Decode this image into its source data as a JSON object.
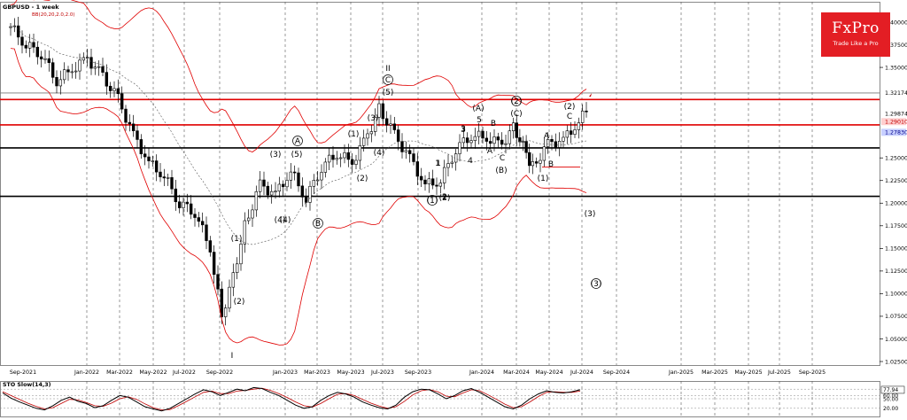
{
  "header": {
    "title": "GBPUSD - 1 week",
    "indicator": "BB(20,20,2.0,2.0)",
    "oscillator": "STO Slow(14,3)"
  },
  "brand": {
    "name": "FxPro",
    "tagline": "Trade Like a Pro"
  },
  "colors": {
    "background": "#ffffff",
    "bands": "#e00000",
    "candles": "#000000",
    "levels_red": "#e00000",
    "levels_black": "#000000",
    "sto_main": "#000000",
    "sto_signal": "#c00000",
    "price_tag": "#c8d0ff"
  },
  "chart_data": [
    {
      "type": "candlestick",
      "title": "GBPUSD - 1 week",
      "ylim": [
        1.0,
        1.42
      ],
      "y_ticks": [
        "1.40000",
        "1.37500",
        "1.35000",
        "1.32174",
        "1.29874",
        "1.29010",
        "1.27830",
        "1.25000",
        "1.22500",
        "1.20000",
        "1.17500",
        "1.15000",
        "1.12500",
        "1.10000",
        "1.07500",
        "1.05000",
        "1.02500"
      ],
      "x_ticks": [
        "Sep-2021",
        "Jan-2022",
        "Mar-2022",
        "May-2022",
        "Jul-2022",
        "Sep-2022",
        "Jan-2023",
        "Mar-2023",
        "May-2023",
        "Jul-2023",
        "Sep-2023",
        "Jan-2024",
        "Mar-2024",
        "May-2024",
        "Jul-2024",
        "Sep-2024",
        "Jan-2025",
        "Mar-2025",
        "May-2025",
        "Jul-2025",
        "Sep-2025"
      ],
      "price_labels": [
        {
          "value": 1.32174,
          "text": "1.32174",
          "style": "line"
        },
        {
          "value": 1.29874,
          "text": "1.29874",
          "style": "plain"
        },
        {
          "value": 1.2901,
          "text": "1.29010",
          "style": "red"
        },
        {
          "value": 1.2783,
          "text": "1.27830",
          "style": "current"
        }
      ],
      "levels": [
        {
          "value": 1.3145,
          "color": "#e00000"
        },
        {
          "value": 1.2865,
          "color": "#e00000"
        },
        {
          "value": 1.261,
          "color": "#000000"
        },
        {
          "value": 1.2075,
          "color": "#000000"
        }
      ],
      "series_close": [
        {
          "x": "2021-09-06",
          "y": 1.395
        },
        {
          "x": "2021-10-04",
          "y": 1.375
        },
        {
          "x": "2021-11-01",
          "y": 1.365
        },
        {
          "x": "2021-11-29",
          "y": 1.335
        },
        {
          "x": "2021-12-27",
          "y": 1.348
        },
        {
          "x": "2022-01-24",
          "y": 1.36
        },
        {
          "x": "2022-02-21",
          "y": 1.34
        },
        {
          "x": "2022-03-21",
          "y": 1.315
        },
        {
          "x": "2022-04-18",
          "y": 1.275
        },
        {
          "x": "2022-05-16",
          "y": 1.245
        },
        {
          "x": "2022-06-13",
          "y": 1.23
        },
        {
          "x": "2022-07-11",
          "y": 1.2
        },
        {
          "x": "2022-08-08",
          "y": 1.19
        },
        {
          "x": "2022-09-05",
          "y": 1.15
        },
        {
          "x": "2022-09-26",
          "y": 1.075
        },
        {
          "x": "2022-10-17",
          "y": 1.12
        },
        {
          "x": "2022-11-07",
          "y": 1.175
        },
        {
          "x": "2022-12-05",
          "y": 1.22
        },
        {
          "x": "2023-01-02",
          "y": 1.21
        },
        {
          "x": "2023-01-30",
          "y": 1.235
        },
        {
          "x": "2023-02-27",
          "y": 1.205
        },
        {
          "x": "2023-03-27",
          "y": 1.24
        },
        {
          "x": "2023-04-24",
          "y": 1.255
        },
        {
          "x": "2023-05-22",
          "y": 1.245
        },
        {
          "x": "2023-06-19",
          "y": 1.275
        },
        {
          "x": "2023-07-10",
          "y": 1.305
        },
        {
          "x": "2023-08-07",
          "y": 1.275
        },
        {
          "x": "2023-09-04",
          "y": 1.25
        },
        {
          "x": "2023-10-02",
          "y": 1.22
        },
        {
          "x": "2023-10-30",
          "y": 1.225
        },
        {
          "x": "2023-11-27",
          "y": 1.26
        },
        {
          "x": "2023-12-25",
          "y": 1.275
        },
        {
          "x": "2024-01-22",
          "y": 1.272
        },
        {
          "x": "2024-02-19",
          "y": 1.265
        },
        {
          "x": "2024-03-11",
          "y": 1.285
        },
        {
          "x": "2024-04-15",
          "y": 1.24
        },
        {
          "x": "2024-05-13",
          "y": 1.265
        },
        {
          "x": "2024-06-10",
          "y": 1.27
        },
        {
          "x": "2024-07-08",
          "y": 1.29
        },
        {
          "x": "2024-07-22",
          "y": 1.3017
        }
      ],
      "wave_labels": [
        "I",
        "(2)",
        "(1)",
        "(3)",
        "(4)",
        "(5)",
        "A",
        "B",
        "II",
        "(5)",
        "C",
        "(3)",
        "(1)",
        "(2)",
        "(4)",
        "(4)",
        "(1)",
        "(2)",
        "1",
        "2",
        "3",
        "4",
        "5",
        "(A)",
        "B",
        "(B)",
        "A",
        "C",
        "(C)",
        "(2)",
        "(1)",
        "B",
        "A",
        "(2)",
        "C",
        "(3)",
        "(3)",
        "2",
        "1",
        "3"
      ],
      "sto": {
        "ylim": [
          0,
          100
        ],
        "y_ticks": [
          "77.94",
          "60.00",
          "50.00",
          "20.00"
        ],
        "levels": [
          80,
          60,
          50,
          20
        ],
        "main": [
          68,
          52,
          40,
          30,
          20,
          15,
          28,
          45,
          55,
          42,
          35,
          22,
          28,
          45,
          60,
          55,
          40,
          25,
          18,
          12,
          20,
          35,
          50,
          65,
          78,
          72,
          60,
          70,
          80,
          75,
          85,
          82,
          70,
          60,
          45,
          30,
          20,
          25,
          45,
          60,
          70,
          65,
          55,
          40,
          30,
          22,
          18,
          30,
          55,
          72,
          80,
          78,
          65,
          50,
          60,
          75,
          82,
          70,
          55,
          40,
          25,
          18,
          30,
          50,
          65,
          75,
          70,
          68,
          72,
          77.94
        ],
        "signal": [
          72,
          60,
          48,
          36,
          26,
          18,
          22,
          35,
          48,
          46,
          38,
          28,
          26,
          36,
          50,
          56,
          48,
          34,
          22,
          15,
          16,
          28,
          42,
          56,
          70,
          74,
          66,
          66,
          74,
          76,
          80,
          83,
          76,
          66,
          54,
          40,
          28,
          24,
          35,
          50,
          64,
          66,
          60,
          48,
          36,
          27,
          20,
          25,
          42,
          62,
          75,
          79,
          72,
          58,
          56,
          68,
          78,
          75,
          62,
          48,
          33,
          22,
          25,
          40,
          57,
          70,
          72,
          70,
          70,
          74
        ]
      }
    }
  ]
}
